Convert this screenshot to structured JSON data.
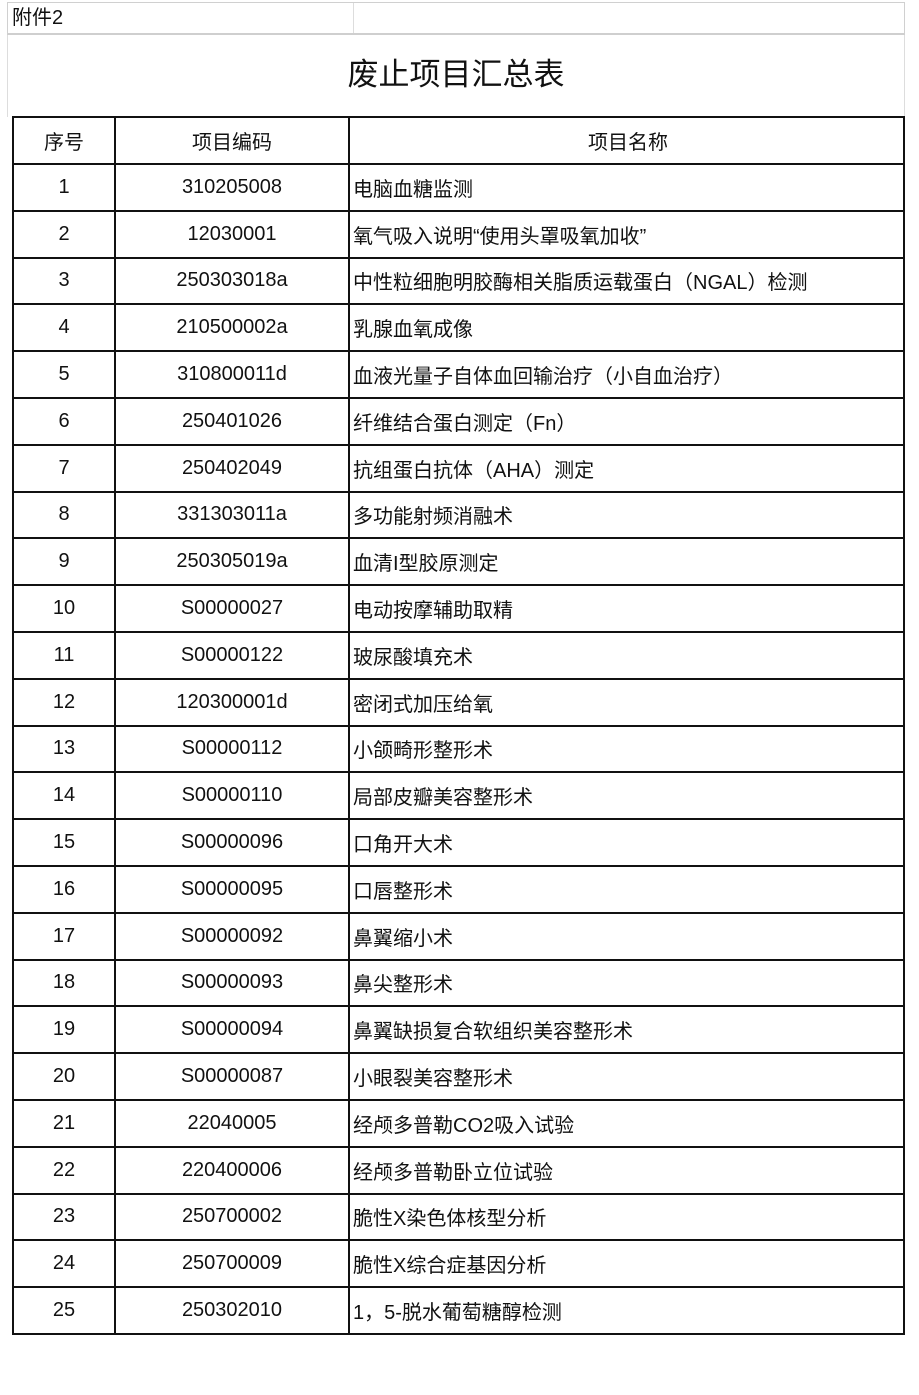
{
  "attachment_label": "附件2",
  "title": "废止项目汇总表",
  "table": {
    "headers": [
      "序号",
      "项目编码",
      "项目名称"
    ],
    "rows": [
      [
        "1",
        "310205008",
        "电脑血糖监测"
      ],
      [
        "2",
        "12030001",
        "氧气吸入说明“使用头罩吸氧加收”"
      ],
      [
        "3",
        "250303018a",
        "中性粒细胞明胶酶相关脂质运载蛋白（NGAL）检测"
      ],
      [
        "4",
        "210500002a",
        "乳腺血氧成像"
      ],
      [
        "5",
        "310800011d",
        "血液光量子自体血回输治疗（小自血治疗）"
      ],
      [
        "6",
        "250401026",
        "纤维结合蛋白测定（Fn）"
      ],
      [
        "7",
        "250402049",
        "抗组蛋白抗体（AHA）测定"
      ],
      [
        "8",
        "331303011a",
        "多功能射频消融术"
      ],
      [
        "9",
        "250305019a",
        "血清I型胶原测定"
      ],
      [
        "10",
        "S00000027",
        "电动按摩辅助取精"
      ],
      [
        "11",
        "S00000122",
        "玻尿酸填充术"
      ],
      [
        "12",
        "120300001d",
        "密闭式加压给氧"
      ],
      [
        "13",
        "S00000112",
        "小颌畸形整形术"
      ],
      [
        "14",
        "S00000110",
        "局部皮瓣美容整形术"
      ],
      [
        "15",
        "S00000096",
        "口角开大术"
      ],
      [
        "16",
        "S00000095",
        "口唇整形术"
      ],
      [
        "17",
        "S00000092",
        "鼻翼缩小术"
      ],
      [
        "18",
        "S00000093",
        "鼻尖整形术"
      ],
      [
        "19",
        "S00000094",
        "鼻翼缺损复合软组织美容整形术"
      ],
      [
        "20",
        "S00000087",
        "小眼裂美容整形术"
      ],
      [
        "21",
        "22040005",
        "经颅多普勒CO2吸入试验"
      ],
      [
        "22",
        "220400006",
        "经颅多普勒卧立位试验"
      ],
      [
        "23",
        "250700002",
        "脆性X染色体核型分析"
      ],
      [
        "24",
        "250700009",
        "脆性X综合症基因分析"
      ],
      [
        "25",
        "250302010",
        "1，5-脱水葡萄糖醇检测"
      ]
    ]
  }
}
